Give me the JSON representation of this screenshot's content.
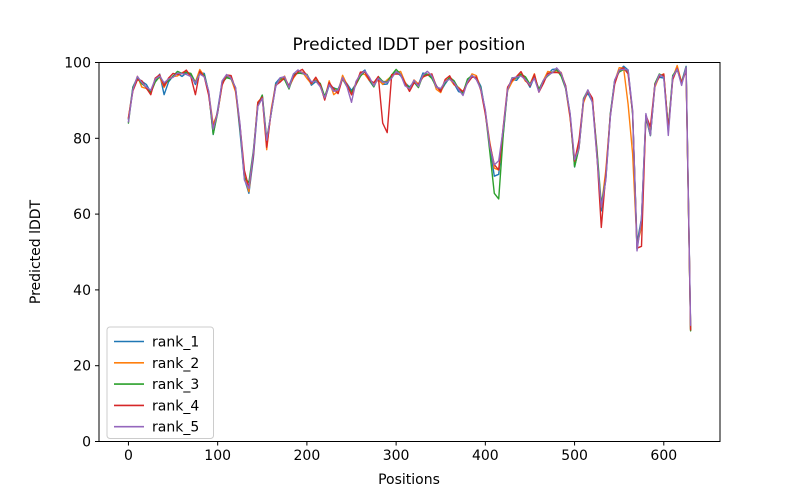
{
  "chart_data": {
    "type": "line",
    "title": "Predicted lDDT per position",
    "xlabel": "Positions",
    "ylabel": "Predicted lDDT",
    "xlim": [
      -33,
      663
    ],
    "ylim": [
      0,
      100
    ],
    "xticks": [
      0,
      100,
      200,
      300,
      400,
      500,
      600
    ],
    "yticks": [
      0,
      20,
      40,
      60,
      80,
      100
    ],
    "grid": false,
    "legend_position": "lower left",
    "x": [
      0,
      5,
      10,
      15,
      20,
      25,
      30,
      35,
      40,
      45,
      50,
      55,
      60,
      65,
      70,
      75,
      80,
      85,
      90,
      95,
      100,
      105,
      110,
      115,
      120,
      125,
      130,
      135,
      140,
      145,
      150,
      155,
      160,
      165,
      170,
      175,
      180,
      185,
      190,
      195,
      200,
      205,
      210,
      215,
      220,
      225,
      230,
      235,
      240,
      245,
      250,
      255,
      260,
      265,
      270,
      275,
      280,
      285,
      290,
      295,
      300,
      305,
      310,
      315,
      320,
      325,
      330,
      335,
      340,
      345,
      350,
      355,
      360,
      365,
      370,
      375,
      380,
      385,
      390,
      395,
      400,
      405,
      410,
      415,
      420,
      425,
      430,
      435,
      440,
      445,
      450,
      455,
      460,
      465,
      470,
      475,
      480,
      485,
      490,
      495,
      500,
      505,
      510,
      515,
      520,
      525,
      530,
      535,
      540,
      545,
      550,
      555,
      560,
      565,
      570,
      575,
      580,
      585,
      590,
      595,
      600,
      605,
      610,
      615,
      620,
      625,
      630
    ],
    "base": [
      85,
      93,
      96,
      95,
      93.5,
      92,
      95.5,
      96.5,
      94,
      95.5,
      96.5,
      97,
      97,
      97.5,
      96.5,
      94.5,
      97.5,
      96.5,
      92,
      82.5,
      87,
      94.5,
      96.5,
      96,
      93,
      83,
      70,
      67,
      76,
      89,
      91,
      79,
      87,
      94,
      95.5,
      96,
      93.5,
      96.5,
      97.5,
      97.5,
      96.5,
      94.5,
      95.5,
      94,
      90.5,
      94.5,
      93,
      92.5,
      96,
      94,
      92,
      94.5,
      97,
      97.5,
      95.5,
      94,
      96,
      94.5,
      95,
      96.5,
      97.5,
      97,
      94.5,
      93,
      95,
      94,
      96.5,
      97,
      96.5,
      93.5,
      92.5,
      95,
      96,
      94.5,
      93,
      92,
      95,
      96.5,
      96,
      93,
      87,
      78,
      73,
      72.5,
      82,
      93,
      95.5,
      96,
      97,
      95.5,
      94,
      96.5,
      92.5,
      95,
      97,
      97.5,
      98,
      97,
      93.5,
      86,
      73.5,
      78,
      90,
      92.5,
      90,
      76,
      61.5,
      70,
      86,
      95,
      98,
      98.5,
      97.5,
      87,
      52,
      58,
      86,
      81.5,
      94,
      96.5,
      96.5,
      82,
      96,
      98.5,
      94.5,
      98.5,
      30
    ],
    "noise_amp": 0.45,
    "series": [
      {
        "name": "rank_1",
        "color": "#1f77b4",
        "overrides": {
          "40": 91.5,
          "95": 81,
          "135": 65.5,
          "410": 70,
          "415": 70.5
        }
      },
      {
        "name": "rank_2",
        "color": "#ff7f0e",
        "overrides": {
          "15": 93.5,
          "155": 77,
          "230": 91.5,
          "560": 89,
          "565": 76,
          "630": 29.3
        }
      },
      {
        "name": "rank_3",
        "color": "#2ca02c",
        "overrides": {
          "0": 84,
          "410": 65.5,
          "415": 64,
          "500": 72.5
        }
      },
      {
        "name": "rank_4",
        "color": "#d62728",
        "overrides": {
          "75": 91.5,
          "285": 84,
          "290": 81.5,
          "530": 56.5,
          "570": 51,
          "575": 51.5
        }
      },
      {
        "name": "rank_5",
        "color": "#9467bd",
        "overrides": {
          "250": 89.5,
          "570": 50.3
        }
      }
    ]
  }
}
